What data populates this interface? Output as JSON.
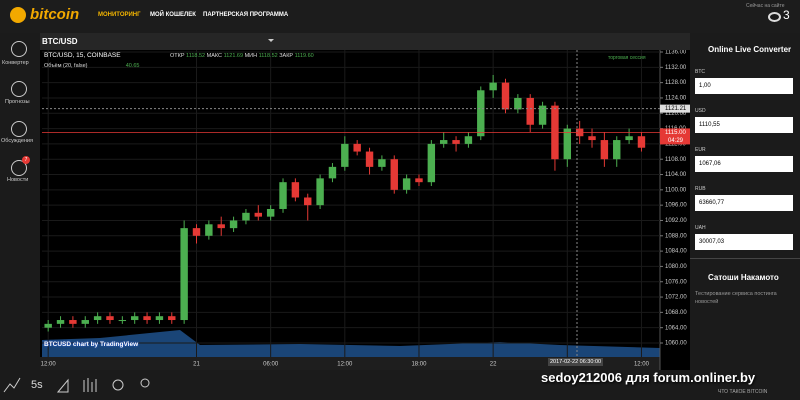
{
  "header": {
    "logo": "bitcoin",
    "nav": [
      "МОНИТОРИНГ",
      "МОЙ КОШЕЛЕК",
      "ПАРТНЕРСКАЯ ПРОГРАММА"
    ],
    "online_label": "Сейчас на сайте",
    "online_count": "3"
  },
  "sidebar": {
    "items": [
      "Конвертер",
      "Прогнозы",
      "Обсуждения",
      "Новости"
    ],
    "news_badge": "7"
  },
  "symbol": "BTC/USD",
  "chart_data": {
    "type": "candlestick",
    "title": "BTC/USD, 15, COINBASE",
    "ohlc_labels": [
      "ОТКР",
      "МАКС",
      "МИН",
      "ЗАКР"
    ],
    "ohlc_values": [
      "1118.52",
      "1121.69",
      "1118.52",
      "1119.60"
    ],
    "volume_label": "Объём (20, false)",
    "volume_value": "40.65",
    "session_label": "торговая сессия",
    "credit": "BTCUSD chart by TradingView",
    "x": [
      0,
      1,
      2,
      3,
      4,
      5,
      6,
      7,
      8,
      9,
      10,
      11,
      12,
      13,
      14,
      15,
      16,
      17,
      18,
      19,
      20,
      21,
      22,
      23,
      24,
      25,
      26,
      27,
      28,
      29,
      30,
      31,
      32,
      33,
      34,
      35,
      36,
      37,
      38,
      39,
      40,
      41,
      42,
      43,
      44,
      45,
      46,
      47,
      48
    ],
    "open": [
      1064,
      1065,
      1066,
      1065,
      1066,
      1067,
      1066,
      1066,
      1067,
      1066,
      1067,
      1066,
      1090,
      1088,
      1091,
      1090,
      1092,
      1094,
      1093,
      1095,
      1102,
      1098,
      1096,
      1103,
      1106,
      1112,
      1110,
      1106,
      1108,
      1100,
      1103,
      1102,
      1112,
      1113,
      1112,
      1114,
      1126,
      1128,
      1121,
      1124,
      1117,
      1122,
      1108,
      1116,
      1114,
      1113,
      1108,
      1113,
      1114
    ],
    "high": [
      1066,
      1067,
      1067,
      1067,
      1068,
      1068,
      1067,
      1068,
      1068,
      1068,
      1068,
      1092,
      1091,
      1092,
      1093,
      1093,
      1095,
      1096,
      1096,
      1103,
      1103,
      1099,
      1104,
      1107,
      1114,
      1113,
      1111,
      1109,
      1109,
      1104,
      1104,
      1113,
      1115,
      1114,
      1115,
      1127,
      1130,
      1129,
      1125,
      1125,
      1123,
      1123,
      1117,
      1118,
      1116,
      1115,
      1114,
      1116,
      1115
    ],
    "low": [
      1063,
      1064,
      1064,
      1064,
      1065,
      1065,
      1065,
      1065,
      1065,
      1065,
      1065,
      1065,
      1086,
      1087,
      1088,
      1089,
      1091,
      1092,
      1092,
      1094,
      1097,
      1092,
      1095,
      1102,
      1105,
      1109,
      1104,
      1105,
      1099,
      1099,
      1101,
      1101,
      1111,
      1110,
      1111,
      1113,
      1124,
      1120,
      1120,
      1115,
      1116,
      1105,
      1106,
      1112,
      1111,
      1106,
      1106,
      1112,
      1110
    ],
    "close": [
      1065,
      1066,
      1065,
      1066,
      1067,
      1066,
      1066,
      1067,
      1066,
      1067,
      1066,
      1090,
      1088,
      1091,
      1090,
      1092,
      1094,
      1093,
      1095,
      1102,
      1098,
      1096,
      1103,
      1106,
      1112,
      1110,
      1106,
      1108,
      1100,
      1103,
      1102,
      1112,
      1113,
      1112,
      1114,
      1126,
      1128,
      1121,
      1124,
      1117,
      1122,
      1108,
      1116,
      1114,
      1113,
      1108,
      1113,
      1114,
      1111
    ],
    "up_color": "#4caf50",
    "down_color": "#e53935",
    "xlim": [
      -0.5,
      49.5
    ],
    "xticks": [
      {
        "value": 0,
        "label": "12:00"
      },
      {
        "value": 12,
        "label": "21"
      },
      {
        "value": 18,
        "label": "06:00"
      },
      {
        "value": 24,
        "label": "12:00"
      },
      {
        "value": 30,
        "label": "18:00"
      },
      {
        "value": 36,
        "label": "22"
      },
      {
        "value": 42,
        "label": "06:00"
      },
      {
        "value": 48,
        "label": "12:00"
      }
    ],
    "ylim": [
      1058,
      1137
    ],
    "yticks": [
      {
        "value": 1060,
        "label": "1060.00"
      },
      {
        "value": 1064,
        "label": "1064.00"
      },
      {
        "value": 1068,
        "label": "1068.00"
      },
      {
        "value": 1072,
        "label": "1072.00"
      },
      {
        "value": 1076,
        "label": "1076.00"
      },
      {
        "value": 1080,
        "label": "1080.00"
      },
      {
        "value": 1084,
        "label": "1084.00"
      },
      {
        "value": 1088,
        "label": "1088.00"
      },
      {
        "value": 1092,
        "label": "1092.00"
      },
      {
        "value": 1096,
        "label": "1096.00"
      },
      {
        "value": 1100,
        "label": "1100.00"
      },
      {
        "value": 1104,
        "label": "1104.00"
      },
      {
        "value": 1108,
        "label": "1108.00"
      },
      {
        "value": 1112,
        "label": "1112.00"
      },
      {
        "value": 1116,
        "label": "1116.00"
      },
      {
        "value": 1120,
        "label": "1120.00"
      },
      {
        "value": 1124,
        "label": "1124.00"
      },
      {
        "value": 1128,
        "label": "1128.00"
      },
      {
        "value": 1132,
        "label": "1132.00"
      },
      {
        "value": 1136,
        "label": "1136.00"
      }
    ],
    "crosshair_price": {
      "value": 1121.21,
      "label": "1121.21"
    },
    "last_price": {
      "value": 1115,
      "label": "1115.00"
    },
    "countdown": "04:29",
    "crosshair_time": "2017-02-22 06:30:00",
    "grid": true
  },
  "converter": {
    "title": "Online Live Converter",
    "rows": [
      [
        "BTC",
        "1,00"
      ],
      [
        "USD",
        "1110,55"
      ],
      [
        "EUR",
        "1067,06"
      ],
      [
        "RUB",
        "63660,77"
      ],
      [
        "UAH",
        "30007,03"
      ]
    ]
  },
  "news": {
    "title": "Сатоши Накамото",
    "text": "Тестирование сервиса постинга новостей"
  },
  "footer": {
    "interval": "5s",
    "watermark": "sedoy212006 для forum.onliner.by",
    "link": "ЧТО ТАКОЕ BITCOIN"
  }
}
